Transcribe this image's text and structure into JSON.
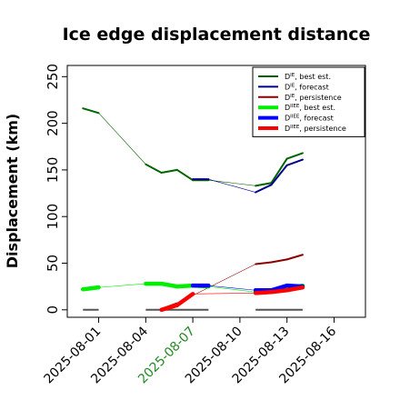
{
  "chart_data": {
    "type": "line",
    "title": "Ice edge displacement distance",
    "ylabel": "Displacement (km)",
    "xlabel": "",
    "ylim": [
      -8,
      262
    ],
    "xlim": [
      "2025-07-30",
      "2025-08-18"
    ],
    "x_ticks": [
      "2025-08-01",
      "2025-08-04",
      "2025-08-07",
      "2025-08-10",
      "2025-08-13",
      "2025-08-16"
    ],
    "x_tick_colors": [
      "#000000",
      "#000000",
      "#228B22",
      "#000000",
      "#000000",
      "#000000"
    ],
    "y_ticks": [
      0,
      50,
      100,
      150,
      200,
      250
    ],
    "grid": false,
    "legend_position": "top-right",
    "series": [
      {
        "name": "D^IE, best est.",
        "color": "#006400",
        "width": 2,
        "points": [
          [
            "2025-07-31",
            216
          ],
          [
            "2025-08-01",
            211
          ],
          [
            "2025-08-04",
            156
          ],
          [
            "2025-08-05",
            147
          ],
          [
            "2025-08-06",
            150
          ],
          [
            "2025-08-07",
            139
          ],
          [
            "2025-08-08",
            139
          ],
          [
            "2025-08-11",
            133
          ],
          [
            "2025-08-12",
            136
          ],
          [
            "2025-08-13",
            162
          ],
          [
            "2025-08-14",
            168
          ]
        ]
      },
      {
        "name": "D^IE, forecast",
        "color": "#00008B",
        "width": 2,
        "points": [
          [
            "2025-08-07",
            140
          ],
          [
            "2025-08-08",
            140
          ],
          [
            "2025-08-11",
            126
          ],
          [
            "2025-08-12",
            134
          ],
          [
            "2025-08-13",
            155
          ],
          [
            "2025-08-14",
            161
          ]
        ]
      },
      {
        "name": "D^IE, persistence",
        "color": "#8B0000",
        "width": 2,
        "points": [
          [
            "2025-08-05",
            1
          ],
          [
            "2025-08-06",
            7
          ],
          [
            "2025-08-11",
            49
          ],
          [
            "2025-08-12",
            51
          ],
          [
            "2025-08-13",
            54
          ],
          [
            "2025-08-14",
            59
          ]
        ]
      },
      {
        "name": "D^IIEE, best est.",
        "color": "#00EE00",
        "width": 4.5,
        "points": [
          [
            "2025-07-31",
            22
          ],
          [
            "2025-08-01",
            24
          ],
          [
            "2025-08-04",
            28
          ],
          [
            "2025-08-05",
            28
          ],
          [
            "2025-08-06",
            25
          ],
          [
            "2025-08-07",
            26
          ],
          [
            "2025-08-08",
            25
          ],
          [
            "2025-08-11",
            19
          ],
          [
            "2025-08-12",
            20
          ],
          [
            "2025-08-13",
            22
          ],
          [
            "2025-08-14",
            26
          ]
        ]
      },
      {
        "name": "D^IIEE, forecast",
        "color": "#0000FF",
        "width": 4.5,
        "points": [
          [
            "2025-08-07",
            26
          ],
          [
            "2025-08-08",
            26
          ],
          [
            "2025-08-11",
            21
          ],
          [
            "2025-08-12",
            21
          ],
          [
            "2025-08-13",
            26
          ],
          [
            "2025-08-14",
            25
          ]
        ]
      },
      {
        "name": "D^IIEE, persistence",
        "color": "#FF0000",
        "width": 4.5,
        "points": [
          [
            "2025-08-05",
            0
          ],
          [
            "2025-08-06",
            5
          ],
          [
            "2025-08-07",
            17
          ],
          [
            "2025-08-11",
            18
          ],
          [
            "2025-08-12",
            19
          ],
          [
            "2025-08-13",
            21
          ],
          [
            "2025-08-14",
            24
          ]
        ]
      }
    ],
    "zero_segments": [
      {
        "color": "#555555",
        "from": "2025-07-31",
        "to": "2025-08-01"
      },
      {
        "color": "#555555",
        "from": "2025-08-04",
        "to": "2025-08-08"
      },
      {
        "color": "#555555",
        "from": "2025-08-11",
        "to": "2025-08-14"
      }
    ],
    "legend": [
      {
        "base": "D",
        "sup": "IE",
        "label": ", best est.",
        "color": "#006400",
        "width": 2
      },
      {
        "base": "D",
        "sup": "IE",
        "label": ", forecast",
        "color": "#00008B",
        "width": 2
      },
      {
        "base": "D",
        "sup": "IE",
        "label": ", persistence",
        "color": "#8B0000",
        "width": 2
      },
      {
        "base": "D",
        "sup": "IIEE",
        "label": ", best est.",
        "color": "#00EE00",
        "width": 4
      },
      {
        "base": "D",
        "sup": "IIEE",
        "label": ", forecast",
        "color": "#0000FF",
        "width": 4
      },
      {
        "base": "D",
        "sup": "IIEE",
        "label": ", persistence",
        "color": "#FF0000",
        "width": 4
      }
    ]
  }
}
